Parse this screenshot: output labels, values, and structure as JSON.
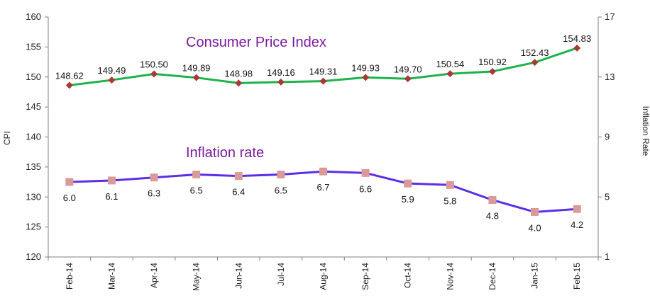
{
  "chart_data": {
    "type": "line",
    "categories": [
      "Feb-14",
      "Mar-14",
      "Apr-14",
      "May-14",
      "Jun-14",
      "Jul-14",
      "Aug-14",
      "Sep-14",
      "Oct-14",
      "Nov-14",
      "Dec-14",
      "Jan-15",
      "Feb-15"
    ],
    "series": [
      {
        "name": "Consumer Price Index",
        "axis": "left",
        "values": [
          148.62,
          149.49,
          150.5,
          149.89,
          148.98,
          149.16,
          149.31,
          149.93,
          149.7,
          150.54,
          150.92,
          152.43,
          154.83
        ],
        "labels": [
          "148.62",
          "149.49",
          "150.50",
          "149.89",
          "148.98",
          "149.16",
          "149.31",
          "149.93",
          "149.70",
          "150.54",
          "150.92",
          "152.43",
          "154.83"
        ],
        "line_color": "#1db24a",
        "marker_color": "#a83a36",
        "marker": "diamond"
      },
      {
        "name": "Inflation rate",
        "axis": "right",
        "values": [
          6.0,
          6.1,
          6.3,
          6.5,
          6.4,
          6.5,
          6.7,
          6.6,
          5.9,
          5.8,
          4.8,
          4.0,
          4.2
        ],
        "labels": [
          "6.0",
          "6.1",
          "6.3",
          "6.5",
          "6.4",
          "6.5",
          "6.7",
          "6.6",
          "5.9",
          "5.8",
          "4.8",
          "4.0",
          "4.2"
        ],
        "line_color": "#5b2ee8",
        "marker_color": "#d99a99",
        "marker": "square"
      }
    ],
    "ylabel": "CPI",
    "ylabel_right": "Inflation Rate",
    "ylim": [
      120,
      160
    ],
    "yticks": [
      120,
      125,
      130,
      135,
      140,
      145,
      150,
      155,
      160
    ],
    "ylim_right": [
      1,
      17
    ],
    "yticks_right": [
      1,
      5,
      9,
      13,
      17
    ],
    "grid": false,
    "legend": "none"
  }
}
